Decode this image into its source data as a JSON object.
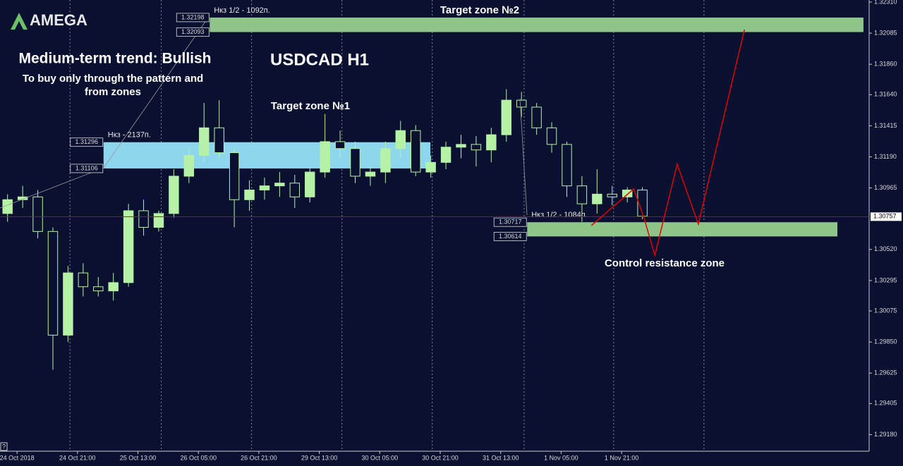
{
  "chart_data": {
    "type": "candlestick",
    "logo": "AMEGA",
    "subtitle": "Medium-term trend: Bullish",
    "note": [
      "To buy only through the pattern  and",
      "from zones"
    ],
    "title": "USDCAD H1",
    "help": "?",
    "xlim": [
      0,
      230
    ],
    "xticks": [
      {
        "value": 4.5,
        "label": "24 Oct 2018"
      },
      {
        "value": 20.5,
        "label": "24 Oct 21:00"
      },
      {
        "value": 36.5,
        "label": "25 Oct 13:00"
      },
      {
        "value": 52.5,
        "label": "26 Oct 05:00"
      },
      {
        "value": 68.5,
        "label": "26 Oct 21:00"
      },
      {
        "value": 84.5,
        "label": "29 Oct 13:00"
      },
      {
        "value": 100.5,
        "label": "30 Oct 05:00"
      },
      {
        "value": 116.5,
        "label": "30 Oct 21:00"
      },
      {
        "value": 132.5,
        "label": "31 Oct 13:00"
      },
      {
        "value": 148.5,
        "label": "1 Nov 05:00"
      },
      {
        "value": 164.5,
        "label": "1 Nov 21:00"
      }
    ],
    "separators": [
      18.5,
      42.7,
      66.6,
      90.5,
      114.4,
      138.7,
      162.4,
      186.3
    ],
    "ylim": [
      1.2906,
      1.32325
    ],
    "yticks": [
      {
        "value": 1.3231,
        "label": "1.32310"
      },
      1.32085,
      {
        "value": 1.3186,
        "label": "1.31860"
      },
      {
        "value": 1.3164,
        "label": "1.31640"
      },
      1.31415,
      {
        "value": 1.3119,
        "label": "1.31190"
      },
      1.30965,
      {
        "value": 1.3052,
        "label": "1.30520"
      },
      1.30295,
      1.30075,
      {
        "value": 1.2985,
        "label": "1.29850"
      },
      1.29625,
      1.29405,
      {
        "value": 1.2918,
        "label": "1.29180"
      }
    ],
    "current_price": 1.30757,
    "current_color": "#d40000",
    "up_color": "#b6f2a6",
    "down_color": "#0a1030",
    "wick_color": "#b6f2a6",
    "candles": {
      "x": [
        2,
        6,
        10,
        14,
        18,
        22,
        26,
        30,
        34,
        38,
        42,
        46,
        50,
        54,
        58,
        62,
        66,
        70,
        74,
        78,
        82,
        86,
        90,
        94,
        98,
        102,
        106,
        110,
        114,
        118,
        122,
        126,
        130,
        134,
        138,
        142,
        146,
        150,
        154,
        158,
        162,
        166,
        170
      ],
      "open": [
        1.3078,
        1.3088,
        1.309,
        1.3065,
        1.299,
        1.3035,
        1.3025,
        1.3022,
        1.3028,
        1.308,
        1.3068,
        1.3078,
        1.3105,
        1.312,
        1.314,
        1.3122,
        1.3088,
        1.3095,
        1.3098,
        1.31,
        1.309,
        1.3108,
        1.313,
        1.3125,
        1.3105,
        1.3108,
        1.3125,
        1.3138,
        1.3108,
        1.3115,
        1.3126,
        1.3128,
        1.3124,
        1.3135,
        1.316,
        1.3155,
        1.314,
        1.3128,
        1.3098,
        1.3085,
        1.3092,
        1.309,
        1.3095
      ],
      "high": [
        1.3092,
        1.3098,
        1.3095,
        1.3068,
        1.304,
        1.3042,
        1.3032,
        1.3035,
        1.3085,
        1.3088,
        1.308,
        1.311,
        1.3125,
        1.3158,
        1.316,
        1.3125,
        1.3102,
        1.3104,
        1.3108,
        1.3106,
        1.3112,
        1.315,
        1.3138,
        1.313,
        1.3112,
        1.313,
        1.3145,
        1.3142,
        1.312,
        1.313,
        1.3135,
        1.3134,
        1.314,
        1.3168,
        1.3166,
        1.3158,
        1.3144,
        1.313,
        1.3105,
        1.311,
        1.3098,
        1.3097,
        1.3097
      ],
      "low": [
        1.3072,
        1.3082,
        1.306,
        1.2965,
        1.2985,
        1.3018,
        1.3018,
        1.3015,
        1.3025,
        1.3062,
        1.3065,
        1.3075,
        1.31,
        1.3115,
        1.3118,
        1.3068,
        1.308,
        1.3088,
        1.309,
        1.3082,
        1.3086,
        1.3104,
        1.3118,
        1.31,
        1.3098,
        1.31,
        1.3118,
        1.3105,
        1.3104,
        1.311,
        1.3118,
        1.3112,
        1.3115,
        1.313,
        1.3148,
        1.3135,
        1.3122,
        1.309,
        1.3072,
        1.3078,
        1.3084,
        1.3086,
        1.3074
      ],
      "close": [
        1.3088,
        1.309,
        1.3065,
        1.299,
        1.3035,
        1.3025,
        1.3022,
        1.3028,
        1.308,
        1.3068,
        1.3078,
        1.3105,
        1.312,
        1.314,
        1.3122,
        1.3088,
        1.3095,
        1.3098,
        1.31,
        1.309,
        1.3108,
        1.313,
        1.3125,
        1.3105,
        1.3108,
        1.3125,
        1.3138,
        1.3108,
        1.3115,
        1.3126,
        1.3128,
        1.3124,
        1.3135,
        1.316,
        1.3155,
        1.314,
        1.3128,
        1.3098,
        1.3085,
        1.3092,
        1.309,
        1.3095,
        1.3076
      ]
    },
    "zones": [
      {
        "label": "Target zone №2",
        "note": "Нкз 1/2 - 1092п.",
        "top": 1.32198,
        "bottom": 1.32093,
        "start": 55.5,
        "end": 228.5,
        "color": "#8fc48a"
      },
      {
        "label": "Target zone №1",
        "note": "Нкз - 2137п.",
        "top": 1.31296,
        "bottom": 1.31106,
        "start": 27.4,
        "end": 113.9,
        "color": "#8dd6ee"
      },
      {
        "label": "Control resistance zone",
        "note": "Нкз 1/2 - 1084п.",
        "top": 1.30717,
        "bottom": 1.30614,
        "start": 139.5,
        "end": 221.6,
        "color": "#8fc48a"
      }
    ],
    "projection": {
      "color": "#e00000",
      "x": [
        156.5,
        167.7,
        170.3,
        173.3,
        179.2,
        184.8,
        197
      ],
      "values": [
        1.30693,
        1.30958,
        1.30759,
        1.30478,
        1.31137,
        1.30703,
        1.32111
      ]
    }
  }
}
